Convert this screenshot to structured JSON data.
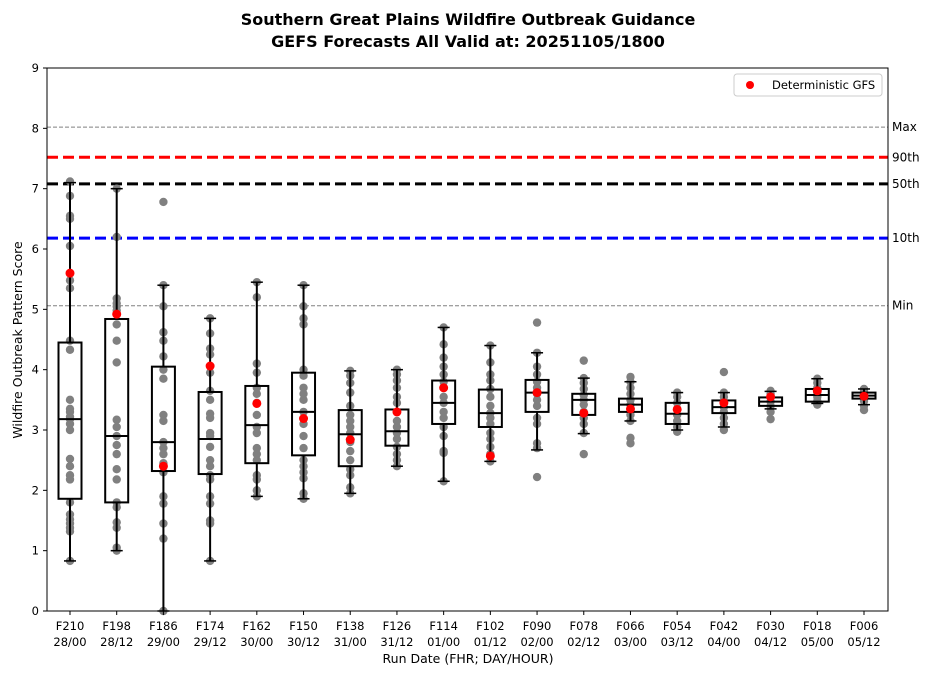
{
  "chart_data": {
    "type": "box",
    "title": "Southern Great Plains Wildfire Outbreak Guidance",
    "subtitle": "GEFS Forecasts All Valid at: 20251105/1800",
    "xlabel": "Run Date (FHR; DAY/HOUR)",
    "ylabel": "Wildfire Outbreak Pattern Score",
    "ylim": [
      0,
      9
    ],
    "yticks": [
      0,
      1,
      2,
      3,
      4,
      5,
      6,
      7,
      8,
      9
    ],
    "grid": false,
    "legend": {
      "position": "top-right",
      "entries": [
        {
          "label": "Deterministic GFS",
          "color": "#ff0000",
          "marker": "circle"
        }
      ]
    },
    "reference_lines": [
      {
        "label": "Max",
        "value": 8.02,
        "color": "#808080",
        "style": "thin-dashed"
      },
      {
        "label": "90th",
        "value": 7.52,
        "color": "#ff0000",
        "style": "thick-dashed"
      },
      {
        "label": "50th",
        "value": 7.08,
        "color": "#000000",
        "style": "thick-dashed"
      },
      {
        "label": "10th",
        "value": 6.18,
        "color": "#0000ff",
        "style": "thick-dashed"
      },
      {
        "label": "Min",
        "value": 5.06,
        "color": "#808080",
        "style": "thin-dashed"
      }
    ],
    "colors": {
      "members": "#808080",
      "deterministic": "#ff0000",
      "box": "#000000"
    },
    "categories": [
      {
        "fhr": "F210",
        "run": "28/00"
      },
      {
        "fhr": "F198",
        "run": "28/12"
      },
      {
        "fhr": "F186",
        "run": "29/00"
      },
      {
        "fhr": "F174",
        "run": "29/12"
      },
      {
        "fhr": "F162",
        "run": "30/00"
      },
      {
        "fhr": "F150",
        "run": "30/12"
      },
      {
        "fhr": "F138",
        "run": "31/00"
      },
      {
        "fhr": "F126",
        "run": "31/12"
      },
      {
        "fhr": "F114",
        "run": "01/00"
      },
      {
        "fhr": "F102",
        "run": "01/12"
      },
      {
        "fhr": "F090",
        "run": "02/00"
      },
      {
        "fhr": "F078",
        "run": "02/12"
      },
      {
        "fhr": "F066",
        "run": "03/00"
      },
      {
        "fhr": "F054",
        "run": "03/12"
      },
      {
        "fhr": "F042",
        "run": "04/00"
      },
      {
        "fhr": "F030",
        "run": "04/12"
      },
      {
        "fhr": "F018",
        "run": "05/00"
      },
      {
        "fhr": "F006",
        "run": "05/12"
      }
    ],
    "boxes": [
      {
        "whislo": 0.83,
        "q1": 1.86,
        "med": 3.18,
        "q3": 4.45,
        "whishi": 7.1,
        "gfs": 5.6,
        "members": [
          0.83,
          1.32,
          1.38,
          1.45,
          1.52,
          1.6,
          1.8,
          2.18,
          2.25,
          2.4,
          2.52,
          3.0,
          3.1,
          3.18,
          3.22,
          3.3,
          3.35,
          3.5,
          4.33,
          4.48,
          5.35,
          5.48,
          6.05,
          6.5,
          6.55,
          6.88,
          7.12
        ]
      },
      {
        "whislo": 1.0,
        "q1": 1.8,
        "med": 2.9,
        "q3": 4.84,
        "whishi": 7.0,
        "gfs": 4.92,
        "members": [
          1.0,
          1.05,
          1.38,
          1.47,
          1.72,
          1.8,
          2.18,
          2.35,
          2.6,
          2.75,
          2.9,
          3.05,
          3.17,
          4.12,
          4.48,
          4.75,
          4.98,
          5.05,
          5.1,
          5.18,
          6.2,
          7.0
        ]
      },
      {
        "whislo": 0.0,
        "q1": 2.32,
        "med": 2.8,
        "q3": 4.05,
        "whishi": 5.4,
        "gfs": 2.4,
        "members": [
          0.0,
          1.2,
          1.45,
          1.78,
          1.9,
          2.3,
          2.45,
          2.6,
          2.7,
          2.8,
          3.15,
          3.25,
          3.85,
          4.0,
          4.22,
          4.48,
          4.62,
          5.05,
          5.4,
          6.78
        ]
      },
      {
        "whislo": 0.83,
        "q1": 2.27,
        "med": 2.85,
        "q3": 3.63,
        "whishi": 4.85,
        "gfs": 4.06,
        "members": [
          0.83,
          1.45,
          1.5,
          1.78,
          1.9,
          2.18,
          2.25,
          2.4,
          2.5,
          2.72,
          2.9,
          2.95,
          3.2,
          3.27,
          3.5,
          3.65,
          3.95,
          4.25,
          4.35,
          4.6,
          4.85
        ]
      },
      {
        "whislo": 1.9,
        "q1": 2.45,
        "med": 3.08,
        "q3": 3.73,
        "whishi": 5.45,
        "gfs": 3.44,
        "members": [
          1.9,
          2.0,
          2.18,
          2.25,
          2.5,
          2.6,
          2.7,
          2.95,
          3.05,
          3.25,
          3.45,
          3.6,
          3.7,
          3.95,
          4.1,
          5.2,
          5.45
        ]
      },
      {
        "whislo": 1.86,
        "q1": 2.58,
        "med": 3.3,
        "q3": 3.95,
        "whishi": 5.4,
        "gfs": 3.19,
        "members": [
          1.86,
          1.95,
          2.2,
          2.3,
          2.4,
          2.5,
          2.7,
          2.9,
          3.1,
          3.3,
          3.5,
          3.6,
          3.7,
          3.9,
          4.0,
          4.75,
          4.85,
          5.05,
          5.4
        ]
      },
      {
        "whislo": 1.95,
        "q1": 2.4,
        "med": 2.93,
        "q3": 3.33,
        "whishi": 3.98,
        "gfs": 2.84,
        "members": [
          1.95,
          2.05,
          2.25,
          2.35,
          2.5,
          2.65,
          2.8,
          2.95,
          3.05,
          3.15,
          3.25,
          3.4,
          3.62,
          3.78,
          3.9,
          3.98
        ]
      },
      {
        "whislo": 2.4,
        "q1": 2.74,
        "med": 2.98,
        "q3": 3.34,
        "whishi": 4.0,
        "gfs": 3.3,
        "members": [
          2.4,
          2.5,
          2.6,
          2.72,
          2.85,
          2.95,
          3.05,
          3.15,
          3.3,
          3.45,
          3.55,
          3.7,
          3.82,
          3.92,
          4.0
        ]
      },
      {
        "whislo": 2.15,
        "q1": 3.1,
        "med": 3.45,
        "q3": 3.82,
        "whishi": 4.7,
        "gfs": 3.7,
        "members": [
          2.15,
          2.62,
          2.65,
          2.9,
          3.05,
          3.2,
          3.3,
          3.45,
          3.55,
          3.7,
          3.8,
          3.92,
          4.05,
          4.2,
          4.42,
          4.7
        ]
      },
      {
        "whislo": 2.48,
        "q1": 3.05,
        "med": 3.28,
        "q3": 3.67,
        "whishi": 4.4,
        "gfs": 2.57,
        "members": [
          2.48,
          2.6,
          2.72,
          2.85,
          2.95,
          3.1,
          3.2,
          3.28,
          3.4,
          3.55,
          3.68,
          3.82,
          3.92,
          4.12,
          4.4
        ]
      },
      {
        "whislo": 2.67,
        "q1": 3.3,
        "med": 3.62,
        "q3": 3.83,
        "whishi": 4.28,
        "gfs": 3.62,
        "members": [
          2.22,
          2.7,
          2.78,
          3.1,
          3.2,
          3.4,
          3.5,
          3.6,
          3.7,
          3.8,
          3.92,
          4.05,
          4.28,
          4.78
        ]
      },
      {
        "whislo": 2.94,
        "q1": 3.25,
        "med": 3.5,
        "q3": 3.6,
        "whishi": 3.86,
        "gfs": 3.28,
        "members": [
          2.6,
          2.95,
          3.1,
          3.2,
          3.3,
          3.42,
          3.5,
          3.58,
          3.68,
          3.78,
          3.86,
          4.15
        ]
      },
      {
        "whislo": 3.15,
        "q1": 3.3,
        "med": 3.42,
        "q3": 3.52,
        "whishi": 3.8,
        "gfs": 3.35,
        "members": [
          2.78,
          2.87,
          3.15,
          3.25,
          3.35,
          3.42,
          3.5,
          3.6,
          3.7,
          3.8,
          3.88
        ]
      },
      {
        "whislo": 3.0,
        "q1": 3.1,
        "med": 3.27,
        "q3": 3.45,
        "whishi": 3.62,
        "gfs": 3.34,
        "members": [
          2.97,
          3.05,
          3.15,
          3.25,
          3.35,
          3.45,
          3.55,
          3.62
        ]
      },
      {
        "whislo": 3.05,
        "q1": 3.28,
        "med": 3.38,
        "q3": 3.49,
        "whishi": 3.62,
        "gfs": 3.45,
        "members": [
          3.0,
          3.1,
          3.2,
          3.3,
          3.38,
          3.45,
          3.55,
          3.62,
          3.96
        ]
      },
      {
        "whislo": 3.35,
        "q1": 3.4,
        "med": 3.47,
        "q3": 3.54,
        "whishi": 3.64,
        "gfs": 3.55,
        "members": [
          3.18,
          3.3,
          3.4,
          3.47,
          3.54,
          3.6,
          3.65
        ]
      },
      {
        "whislo": 3.44,
        "q1": 3.47,
        "med": 3.58,
        "q3": 3.68,
        "whishi": 3.85,
        "gfs": 3.65,
        "members": [
          3.42,
          3.48,
          3.55,
          3.62,
          3.7,
          3.78,
          3.85
        ]
      },
      {
        "whislo": 3.42,
        "q1": 3.52,
        "med": 3.57,
        "q3": 3.62,
        "whishi": 3.68,
        "gfs": 3.56,
        "members": [
          3.33,
          3.4,
          3.48,
          3.55,
          3.6,
          3.65,
          3.68
        ]
      }
    ]
  }
}
